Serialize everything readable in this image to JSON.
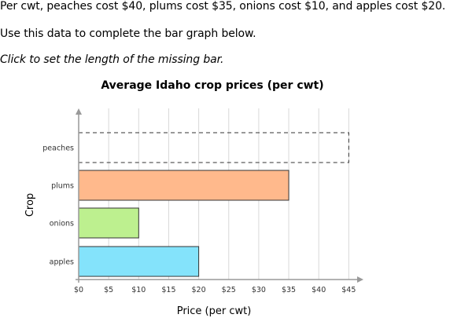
{
  "question": {
    "prompt": "Per cwt, peaches cost $40, plums cost $35, onions cost $10, and apples cost $20.",
    "instruction": "Use this data to complete the bar graph below.",
    "hint": "Click to set the length of the missing bar."
  },
  "chart_data": {
    "type": "bar",
    "orientation": "horizontal",
    "title": "Average Idaho crop prices (per cwt)",
    "xlabel": "Price (per cwt)",
    "ylabel": "Crop",
    "categories": [
      "peaches",
      "plums",
      "onions",
      "apples"
    ],
    "values": [
      null,
      35,
      10,
      20
    ],
    "colors": [
      "none",
      "#ffb98c",
      "#bdf08f",
      "#84e3fb"
    ],
    "missing_bar": "peaches",
    "x_ticks": [
      0,
      5,
      10,
      15,
      20,
      25,
      30,
      35,
      40,
      45
    ],
    "x_tick_labels": [
      "$0",
      "$5",
      "$10",
      "$15",
      "$20",
      "$25",
      "$30",
      "$35",
      "$40",
      "$45"
    ],
    "xlim": [
      0,
      45
    ],
    "grid": true
  }
}
